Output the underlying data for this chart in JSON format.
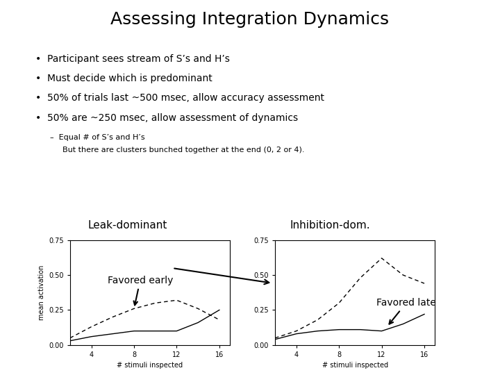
{
  "title": "Assessing Integration Dynamics",
  "bullets": [
    "Participant sees stream of S’s and H’s",
    "Must decide which is predominant",
    "50% of trials last ~500 msec, allow accuracy assessment",
    "50% are ~250 msec, allow assessment of dynamics"
  ],
  "sub_bullet_line1": "Equal # of S’s and H’s",
  "sub_bullet_line2": "But there are clusters bunched together at the end (0, 2 or 4).",
  "left_label": "Leak-dominant",
  "right_label": "Inhibition-dom.",
  "annotation_early": "Favored early",
  "annotation_late": "Favored late",
  "xlabel": "# stimuli inspected",
  "ylabel": "mean activation",
  "x_ticks": [
    4,
    8,
    12,
    16
  ],
  "ylim": [
    0,
    0.75
  ],
  "yticks": [
    0,
    0.25,
    0.5,
    0.75
  ],
  "left_x": [
    2,
    4,
    6,
    8,
    10,
    12,
    14,
    16
  ],
  "left_dashed": [
    0.05,
    0.13,
    0.2,
    0.26,
    0.3,
    0.32,
    0.26,
    0.18
  ],
  "left_solid": [
    0.03,
    0.06,
    0.08,
    0.1,
    0.1,
    0.1,
    0.16,
    0.25
  ],
  "right_x": [
    2,
    4,
    6,
    8,
    10,
    12,
    14,
    16
  ],
  "right_dashed": [
    0.05,
    0.1,
    0.18,
    0.3,
    0.48,
    0.62,
    0.5,
    0.44
  ],
  "right_solid": [
    0.04,
    0.08,
    0.1,
    0.11,
    0.11,
    0.1,
    0.15,
    0.22
  ],
  "bg_color": "#ffffff",
  "title_fontsize": 18,
  "bullet_fontsize": 10,
  "sub_fontsize": 8,
  "axis_label_fontsize": 7,
  "tick_fontsize": 7,
  "chart_label_fontsize": 11
}
